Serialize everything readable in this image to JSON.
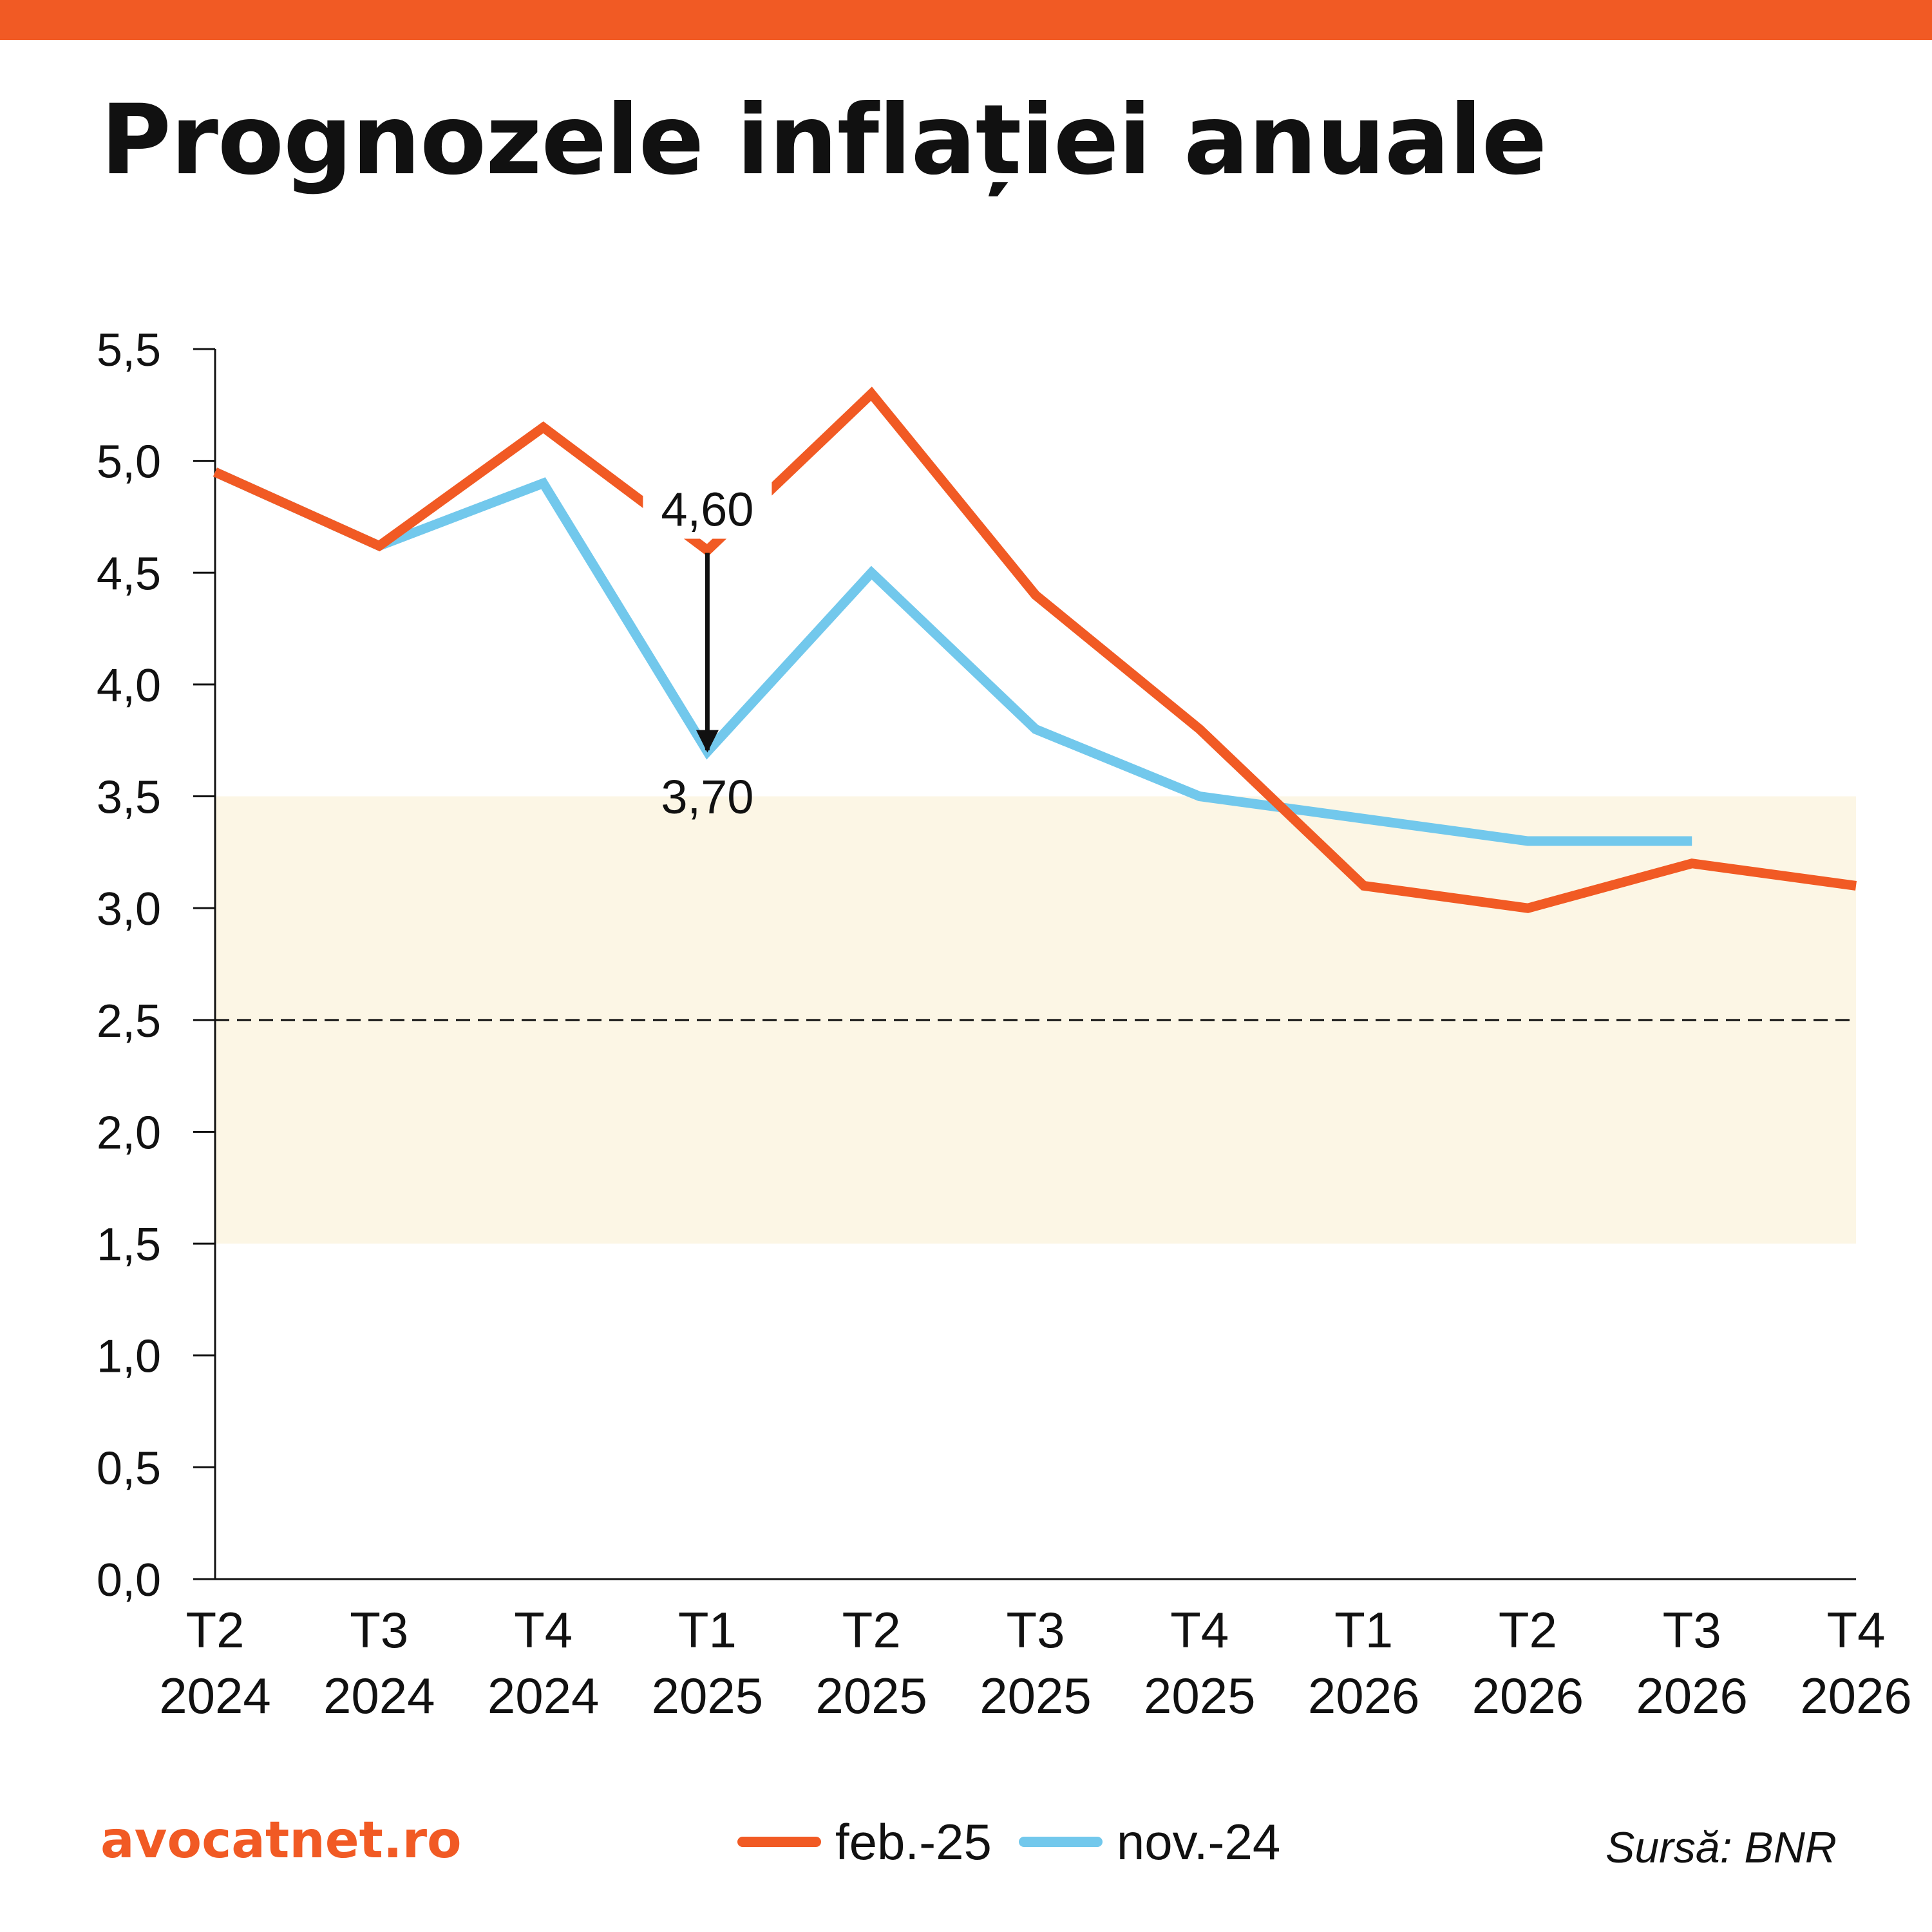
{
  "colors": {
    "accent": "#f15a24",
    "secondary": "#72c8ec",
    "band": "#fcf6e5",
    "text": "#111111"
  },
  "title": "Prognozele inflației anuale",
  "footer": {
    "brand": "avocatnet.ro",
    "source": "Sursă: BNR"
  },
  "chart_data": {
    "type": "line",
    "title": "Prognozele inflației anuale",
    "xlabel": "",
    "ylabel": "",
    "ylim": [
      0,
      5.5
    ],
    "y_ticks": [
      "0,0",
      "0,5",
      "1,0",
      "1,5",
      "2,0",
      "2,5",
      "3,0",
      "3,5",
      "4,0",
      "4,5",
      "5,0",
      "5,5"
    ],
    "grid": false,
    "legend_position": "bottom",
    "categories": [
      [
        "T2",
        "2024"
      ],
      [
        "T3",
        "2024"
      ],
      [
        "T4",
        "2024"
      ],
      [
        "T1",
        "2025"
      ],
      [
        "T2",
        "2025"
      ],
      [
        "T3",
        "2025"
      ],
      [
        "T4",
        "2025"
      ],
      [
        "T1",
        "2026"
      ],
      [
        "T2",
        "2026"
      ],
      [
        "T3",
        "2026"
      ],
      [
        "T4",
        "2026"
      ]
    ],
    "series": [
      {
        "name": "feb.-25",
        "color": "#f15a24",
        "values": [
          4.95,
          4.62,
          5.15,
          4.6,
          5.3,
          4.4,
          3.8,
          3.1,
          3.0,
          3.2,
          3.1
        ]
      },
      {
        "name": "nov.-24",
        "color": "#72c8ec",
        "values": [
          4.95,
          4.62,
          4.9,
          3.7,
          4.5,
          3.8,
          3.5,
          3.4,
          3.3,
          3.3,
          null
        ]
      }
    ],
    "target_band": {
      "from": 1.5,
      "to": 3.5,
      "color": "#fcf6e5"
    },
    "target_line": {
      "value": 2.5,
      "style": "dashed"
    },
    "annotation": {
      "category_index": 3,
      "from_value": 4.6,
      "to_value": 3.7,
      "from_label": "4,60",
      "to_label": "3,70"
    }
  }
}
